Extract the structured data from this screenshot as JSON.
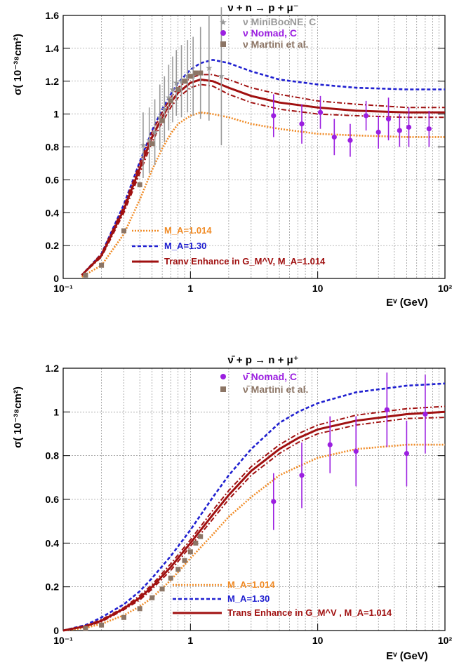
{
  "chart_data": [
    {
      "type": "line",
      "title": "ν + n → p + μ⁻",
      "xlabel": "Eᵛ (GeV)",
      "ylabel": "σ( 10⁻³⁸cm²)",
      "xscale": "log",
      "xlim": [
        0.1,
        100
      ],
      "ylim": [
        0,
        1.6
      ],
      "grid": true,
      "legend_top_position": "top-right",
      "legend_bottom_position": "bottom-left",
      "x_tick_labels": [
        "10⁻¹",
        "1",
        "10",
        "10²"
      ],
      "y_tick_labels": [
        "0",
        "0.2",
        "0.4",
        "0.6",
        "0.8",
        "1",
        "1.2",
        "1.4",
        "1.6"
      ],
      "data_legend": [
        {
          "name": "ν MiniBooNE, C",
          "color": "#9a9a9a",
          "marker": "star"
        },
        {
          "name": "ν Nomad, C",
          "color": "#9b1fe0",
          "marker": "circle"
        },
        {
          "name": "ν Martini et al.",
          "color": "#8c7565",
          "marker": "square"
        }
      ],
      "curve_legend": [
        {
          "name": "M_A=1.014",
          "color": "#f08a24",
          "style": "dotted"
        },
        {
          "name": "M_A=1.30",
          "color": "#2020d0",
          "style": "dashed"
        },
        {
          "name": "Tranv Enhance in G_M^V, M_A=1.014",
          "color": "#a01010",
          "style": "solid"
        }
      ],
      "series": [
        {
          "name": "M_A=1.014",
          "color": "#f08a24",
          "style": "dotted",
          "x": [
            0.14,
            0.2,
            0.3,
            0.4,
            0.5,
            0.6,
            0.7,
            0.8,
            1.0,
            1.2,
            1.5,
            2,
            3,
            5,
            10,
            20,
            50,
            100
          ],
          "y": [
            0.01,
            0.08,
            0.27,
            0.48,
            0.66,
            0.79,
            0.88,
            0.94,
            0.99,
            1.01,
            1.0,
            0.98,
            0.94,
            0.91,
            0.88,
            0.87,
            0.86,
            0.86
          ]
        },
        {
          "name": "M_A=1.30",
          "color": "#2020d0",
          "style": "dashed",
          "x": [
            0.14,
            0.2,
            0.3,
            0.4,
            0.5,
            0.6,
            0.7,
            0.8,
            1.0,
            1.2,
            1.5,
            2,
            3,
            5,
            10,
            20,
            50,
            100
          ],
          "y": [
            0.02,
            0.15,
            0.45,
            0.71,
            0.9,
            1.03,
            1.12,
            1.19,
            1.27,
            1.31,
            1.33,
            1.31,
            1.26,
            1.21,
            1.18,
            1.16,
            1.15,
            1.15
          ]
        },
        {
          "name": "Tranv Enhance in G_M^V, M_A=1.014",
          "color": "#a01010",
          "style": "solid",
          "x": [
            0.14,
            0.2,
            0.3,
            0.4,
            0.5,
            0.6,
            0.7,
            0.8,
            1.0,
            1.2,
            1.5,
            2,
            3,
            5,
            10,
            20,
            50,
            100
          ],
          "y": [
            0.02,
            0.14,
            0.42,
            0.67,
            0.86,
            0.98,
            1.07,
            1.13,
            1.19,
            1.21,
            1.2,
            1.16,
            1.11,
            1.07,
            1.04,
            1.02,
            1.01,
            1.01
          ]
        },
        {
          "name": "band upper",
          "color": "#a01010",
          "style": "dashdot",
          "x": [
            0.14,
            0.2,
            0.3,
            0.4,
            0.5,
            0.6,
            0.7,
            0.8,
            1.0,
            1.2,
            1.5,
            2,
            3,
            5,
            10,
            20,
            50,
            100
          ],
          "y": [
            0.02,
            0.15,
            0.44,
            0.7,
            0.89,
            1.01,
            1.1,
            1.16,
            1.22,
            1.24,
            1.24,
            1.21,
            1.16,
            1.12,
            1.08,
            1.06,
            1.04,
            1.04
          ]
        },
        {
          "name": "band lower",
          "color": "#a01010",
          "style": "dashdot",
          "x": [
            0.14,
            0.2,
            0.3,
            0.4,
            0.5,
            0.6,
            0.7,
            0.8,
            1.0,
            1.2,
            1.5,
            2,
            3,
            5,
            10,
            20,
            50,
            100
          ],
          "y": [
            0.02,
            0.13,
            0.4,
            0.64,
            0.83,
            0.95,
            1.04,
            1.1,
            1.16,
            1.18,
            1.17,
            1.12,
            1.07,
            1.03,
            1.0,
            0.99,
            0.98,
            0.98
          ]
        }
      ],
      "points": [
        {
          "name": "ν MiniBooNE, C",
          "marker": "star",
          "color": "#9a9a9a",
          "x": [
            0.425,
            0.475,
            0.525,
            0.575,
            0.625,
            0.675,
            0.725,
            0.775,
            0.85,
            0.95,
            1.05,
            1.2,
            1.4,
            1.75
          ],
          "y": [
            0.81,
            0.84,
            0.89,
            0.98,
            1.03,
            1.1,
            1.15,
            1.19,
            1.2,
            1.23,
            1.23,
            1.25,
            1.28,
            1.23
          ],
          "err": [
            0.2,
            0.2,
            0.2,
            0.2,
            0.2,
            0.2,
            0.2,
            0.2,
            0.22,
            0.22,
            0.24,
            0.28,
            0.32,
            0.42
          ]
        },
        {
          "name": "ν Nomad, C",
          "marker": "circle",
          "color": "#9b1fe0",
          "x": [
            4.5,
            7.5,
            10.5,
            13.5,
            18,
            24,
            30,
            36,
            44,
            52,
            75
          ],
          "y": [
            0.99,
            0.94,
            1.01,
            0.86,
            0.84,
            0.99,
            0.89,
            0.97,
            0.9,
            0.92,
            0.91
          ],
          "err": [
            0.13,
            0.12,
            0.1,
            0.11,
            0.1,
            0.09,
            0.1,
            0.13,
            0.1,
            0.12,
            0.11
          ]
        },
        {
          "name": "ν Martini et al.",
          "marker": "square",
          "color": "#8c7565",
          "x": [
            0.15,
            0.2,
            0.3,
            0.4,
            0.5,
            0.6,
            0.7,
            0.8,
            0.9,
            1.0,
            1.1,
            1.2
          ],
          "y": [
            0.02,
            0.08,
            0.29,
            0.57,
            0.82,
            0.96,
            1.08,
            1.15,
            1.2,
            1.23,
            1.25,
            1.25
          ],
          "err": []
        }
      ]
    },
    {
      "type": "line",
      "title": "ν̄ + p → n + μ⁺",
      "xlabel": "Eᵛ (GeV)",
      "ylabel": "σ( 10⁻³⁸cm²)",
      "xscale": "log",
      "xlim": [
        0.1,
        100
      ],
      "ylim": [
        0,
        1.2
      ],
      "grid": true,
      "legend_top_position": "top-center",
      "legend_bottom_position": "bottom-center",
      "x_tick_labels": [
        "10⁻¹",
        "1",
        "10",
        "10²"
      ],
      "y_tick_labels": [
        "0",
        "0.2",
        "0.4",
        "0.6",
        "0.8",
        "1",
        "1.2"
      ],
      "data_legend": [
        {
          "name": "ν̄ Nomad, C",
          "color": "#9b1fe0",
          "marker": "circle"
        },
        {
          "name": "ν̄ Martini et al.",
          "color": "#8c7565",
          "marker": "square"
        }
      ],
      "curve_legend": [
        {
          "name": "M_A=1.014",
          "color": "#f08a24",
          "style": "dotted"
        },
        {
          "name": "M_A=1.30",
          "color": "#2020d0",
          "style": "dashed"
        },
        {
          "name": "Trans Enhance in G_M^V , M_A=1.014",
          "color": "#a01010",
          "style": "solid"
        }
      ],
      "series": [
        {
          "name": "M_A=1.014",
          "color": "#f08a24",
          "style": "dotted",
          "x": [
            0.1,
            0.15,
            0.2,
            0.3,
            0.4,
            0.5,
            0.7,
            1.0,
            1.5,
            2,
            3,
            5,
            7,
            10,
            20,
            50,
            100
          ],
          "y": [
            0.0,
            0.012,
            0.03,
            0.07,
            0.11,
            0.15,
            0.23,
            0.33,
            0.44,
            0.52,
            0.61,
            0.71,
            0.75,
            0.79,
            0.83,
            0.85,
            0.85
          ]
        },
        {
          "name": "M_A=1.30",
          "color": "#2020d0",
          "style": "dashed",
          "x": [
            0.1,
            0.15,
            0.2,
            0.3,
            0.4,
            0.5,
            0.7,
            1.0,
            1.5,
            2,
            3,
            5,
            7,
            10,
            20,
            50,
            100
          ],
          "y": [
            0.0,
            0.025,
            0.06,
            0.12,
            0.18,
            0.24,
            0.34,
            0.46,
            0.61,
            0.71,
            0.83,
            0.95,
            1.0,
            1.04,
            1.09,
            1.12,
            1.13
          ]
        },
        {
          "name": "Trans Enhance in G_M^V , M_A=1.014",
          "color": "#a01010",
          "style": "solid",
          "x": [
            0.1,
            0.15,
            0.2,
            0.3,
            0.4,
            0.5,
            0.7,
            1.0,
            1.5,
            2,
            3,
            5,
            7,
            10,
            20,
            50,
            100
          ],
          "y": [
            0.0,
            0.02,
            0.045,
            0.1,
            0.15,
            0.2,
            0.29,
            0.4,
            0.53,
            0.62,
            0.73,
            0.83,
            0.88,
            0.92,
            0.96,
            0.99,
            1.0
          ]
        },
        {
          "name": "band upper",
          "color": "#a01010",
          "style": "dashdot",
          "x": [
            0.1,
            0.15,
            0.2,
            0.3,
            0.4,
            0.5,
            0.7,
            1.0,
            1.5,
            2,
            3,
            5,
            7,
            10,
            20,
            50,
            100
          ],
          "y": [
            0.0,
            0.022,
            0.05,
            0.105,
            0.16,
            0.21,
            0.305,
            0.415,
            0.55,
            0.64,
            0.75,
            0.85,
            0.9,
            0.94,
            0.985,
            1.015,
            1.025
          ]
        },
        {
          "name": "band lower",
          "color": "#a01010",
          "style": "dashdot",
          "x": [
            0.1,
            0.15,
            0.2,
            0.3,
            0.4,
            0.5,
            0.7,
            1.0,
            1.5,
            2,
            3,
            5,
            7,
            10,
            20,
            50,
            100
          ],
          "y": [
            0.0,
            0.018,
            0.04,
            0.095,
            0.14,
            0.19,
            0.275,
            0.385,
            0.51,
            0.6,
            0.71,
            0.81,
            0.86,
            0.9,
            0.94,
            0.97,
            0.975
          ]
        }
      ],
      "points": [
        {
          "name": "ν̄ Nomad, C",
          "marker": "circle",
          "color": "#9b1fe0",
          "x": [
            4.5,
            7.5,
            12.5,
            20,
            35,
            50,
            70
          ],
          "y": [
            0.59,
            0.71,
            0.85,
            0.82,
            1.01,
            0.81,
            0.99
          ],
          "err": [
            0.13,
            0.15,
            0.13,
            0.16,
            0.17,
            0.15,
            0.18
          ]
        },
        {
          "name": "ν̄ Martini et al.",
          "marker": "square",
          "color": "#8c7565",
          "x": [
            0.15,
            0.2,
            0.3,
            0.4,
            0.5,
            0.6,
            0.7,
            0.8,
            0.9,
            1.0,
            1.1,
            1.2
          ],
          "y": [
            0.01,
            0.025,
            0.06,
            0.1,
            0.15,
            0.19,
            0.24,
            0.28,
            0.32,
            0.36,
            0.4,
            0.43
          ],
          "err": []
        }
      ]
    }
  ]
}
